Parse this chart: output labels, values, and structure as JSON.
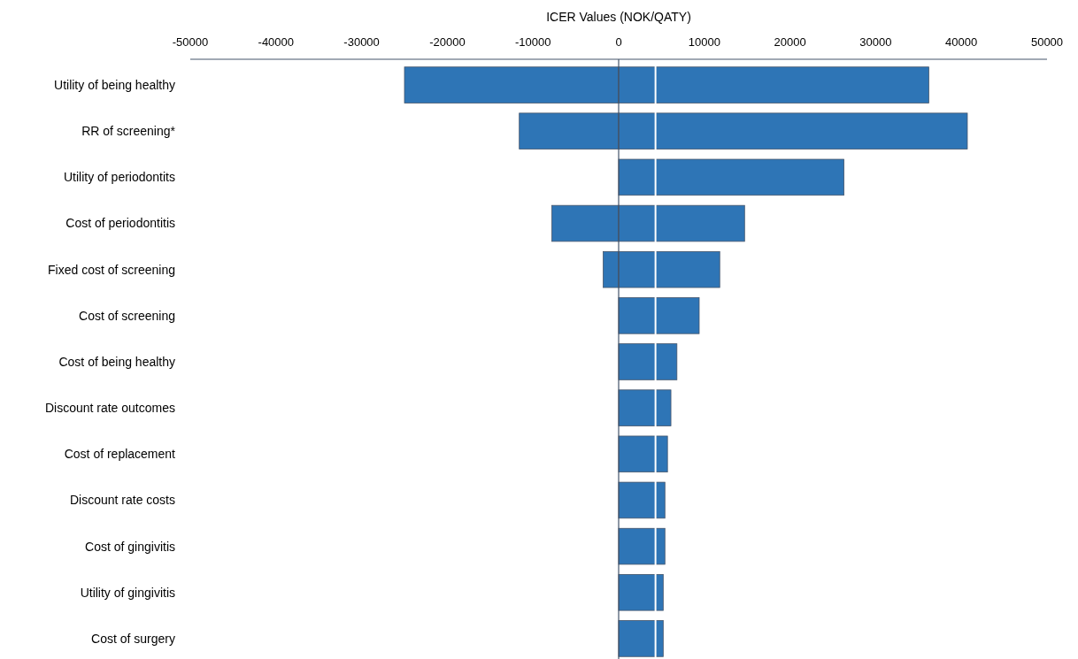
{
  "chart_data": {
    "type": "bar",
    "orientation": "horizontal",
    "xlabel": "ICER Values (NOK/QATY)",
    "categories": [
      "Utility of being healthy",
      "RR of screening*",
      "Utility of periodontits",
      "Cost of periodontitis",
      "Fixed cost of screening",
      "Cost of screening",
      "Cost of being healthy",
      "Discount rate outcomes",
      "Cost of replacement",
      "Discount rate costs",
      "Cost of gingivitis",
      "Utility of gingivitis",
      "Cost of surgery"
    ],
    "series": [
      {
        "color": "#2e75b6",
        "values": [
          -25000,
          -11600,
          null,
          -7800,
          -1800,
          null,
          null,
          null,
          null,
          null,
          null,
          null,
          null
        ]
      },
      {
        "color": "#2e75b6",
        "values": [
          36200,
          40700,
          26300,
          14700,
          11800,
          9400,
          6800,
          6100,
          5700,
          5400,
          5400,
          5200,
          5200
        ]
      }
    ],
    "ref_lines": [
      {
        "axis": "x",
        "value": 4300,
        "color": "#ffffff"
      }
    ],
    "xlim": [
      -50000,
      50000
    ],
    "xticks": [
      -50000,
      -40000,
      -30000,
      -20000,
      -10000,
      0,
      10000,
      20000,
      30000,
      40000,
      50000
    ]
  }
}
